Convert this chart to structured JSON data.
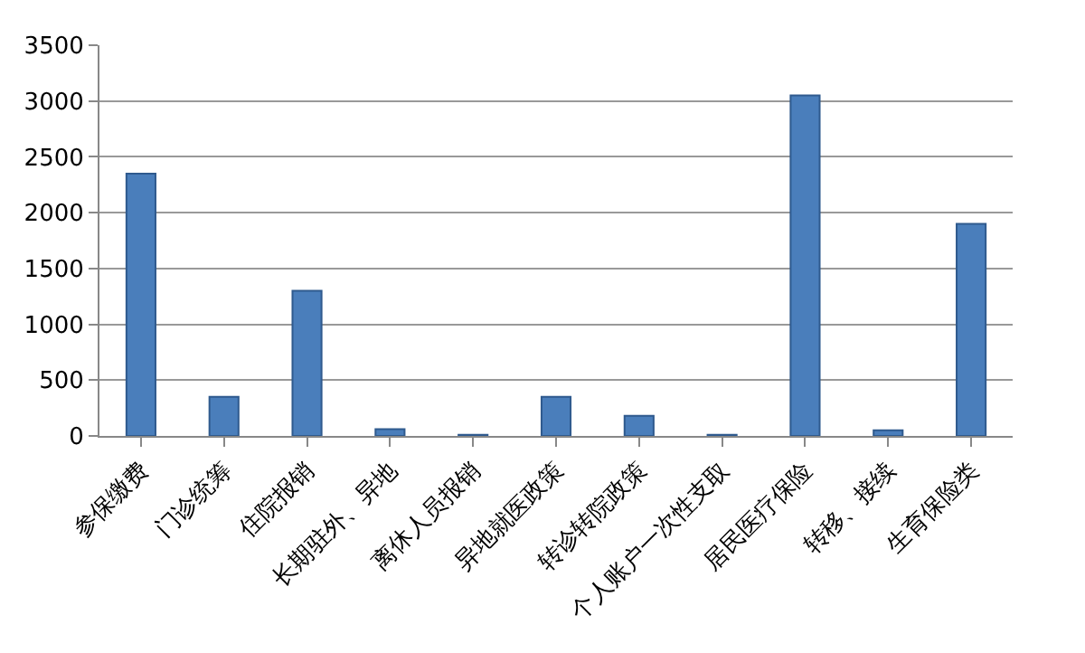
{
  "chart_data": {
    "type": "bar",
    "categories": [
      "参保缴费",
      "门诊统筹",
      "住院报销",
      "长期驻外、异地",
      "离休人员报销",
      "异地就医政策",
      "转诊转院政策",
      "个人账户一次性支取",
      "居民医疗保险",
      "转移、接续",
      "生育保险类"
    ],
    "values": [
      2350,
      350,
      1300,
      60,
      10,
      350,
      180,
      10,
      3050,
      50,
      1900
    ],
    "color": "#4a7ebb",
    "ylim": [
      0,
      3500
    ],
    "yticks": [
      0,
      500,
      1000,
      1500,
      2000,
      2500,
      3000,
      3500
    ],
    "grid": "y",
    "legend": false
  }
}
